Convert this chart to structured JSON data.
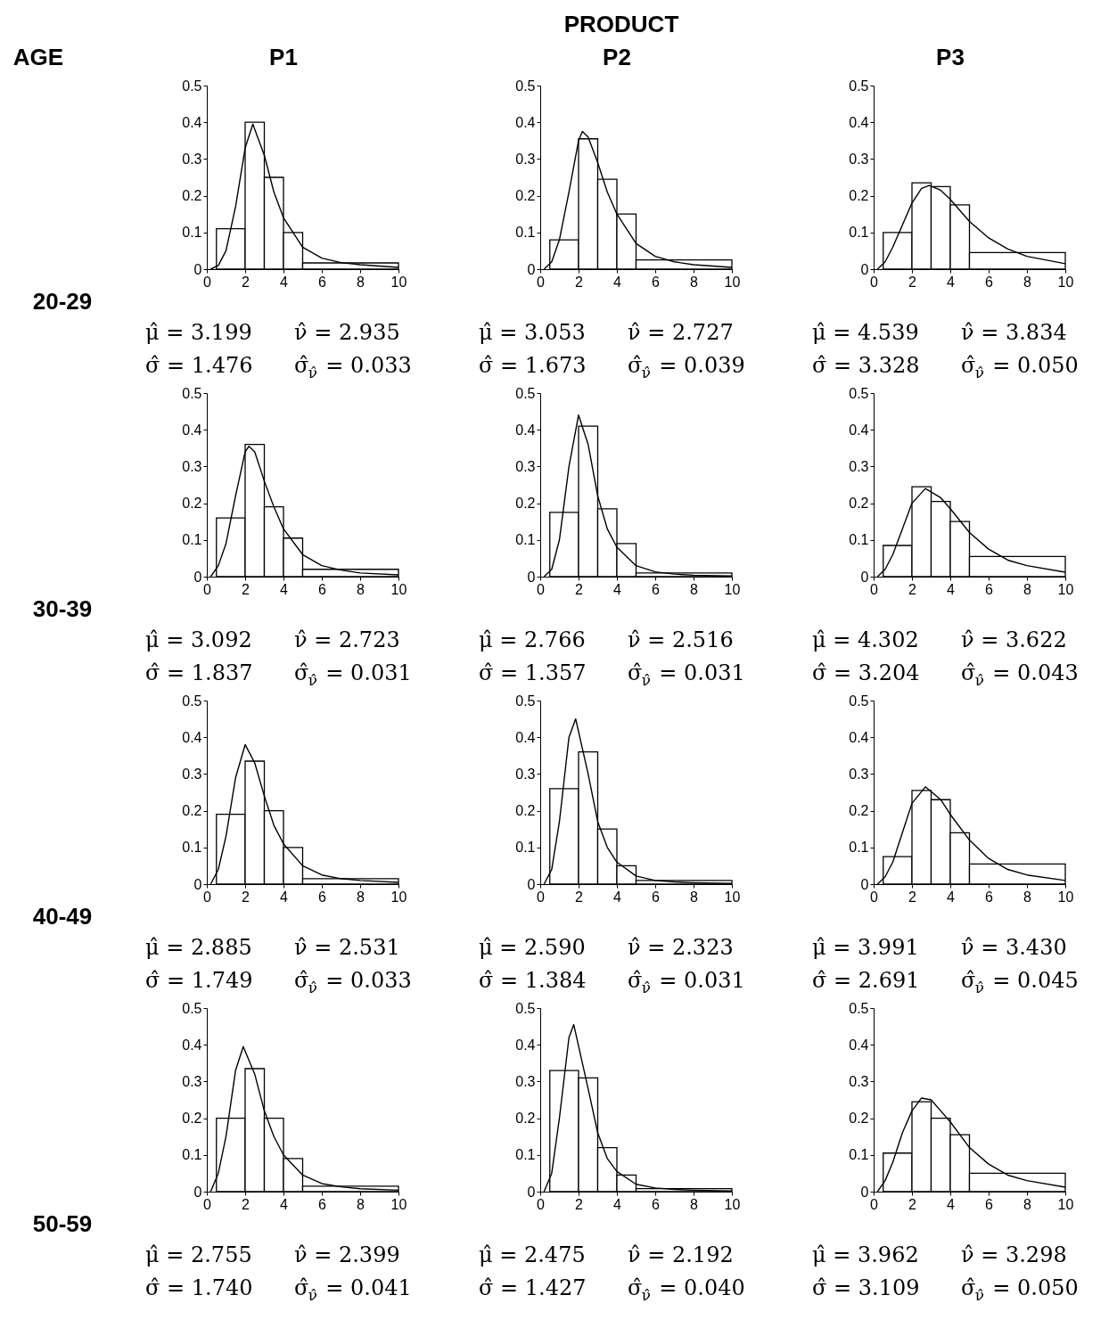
{
  "chart_data": [
    {
      "type": "other",
      "title": "PRODUCT",
      "annotations": [
        "AGE",
        "P1",
        "P2",
        "P3"
      ]
    },
    {
      "type": "other",
      "annotations": [
        "20-29",
        "30-39",
        "40-49",
        "50-59"
      ]
    },
    {
      "type": "histogram",
      "bins": [
        0.5,
        2,
        3,
        4,
        5,
        10
      ],
      "values": [
        0.11,
        0.4,
        0.25,
        0.1,
        0.017
      ],
      "xlim": [
        0,
        10
      ],
      "xticks": [
        0,
        2,
        4,
        6,
        8,
        10
      ],
      "ylim": [
        0,
        0.5
      ],
      "yticks": [
        0,
        0.1,
        0.2,
        0.3,
        0.4,
        0.5
      ],
      "series": [
        {
          "type": "line",
          "color": "#000000",
          "x": [
            0.2,
            0.6,
            1,
            1.5,
            2,
            2.4,
            3,
            3.5,
            4,
            5,
            6,
            7,
            8,
            10
          ],
          "values": [
            0,
            0.01,
            0.05,
            0.17,
            0.33,
            0.395,
            0.31,
            0.21,
            0.14,
            0.06,
            0.03,
            0.018,
            0.012,
            0.005
          ]
        }
      ],
      "annotations": [
        "μ̂ = 3.199",
        "ν̂ = 2.935",
        "σ̂ = 1.476",
        "σ̂$_{ν̂}$ = 0.033"
      ]
    },
    {
      "type": "histogram",
      "bins": [
        0.5,
        2,
        3,
        4,
        5,
        10
      ],
      "values": [
        0.08,
        0.355,
        0.245,
        0.15,
        0.025
      ],
      "xlim": [
        0,
        10
      ],
      "xticks": [
        0,
        2,
        4,
        6,
        8,
        10
      ],
      "ylim": [
        0,
        0.5
      ],
      "yticks": [
        0,
        0.1,
        0.2,
        0.3,
        0.4,
        0.5
      ],
      "series": [
        {
          "type": "line",
          "color": "#000000",
          "x": [
            0.2,
            0.6,
            1,
            1.5,
            2,
            2.2,
            2.5,
            3,
            3.5,
            4,
            5,
            6,
            7,
            8,
            10
          ],
          "values": [
            0,
            0.02,
            0.08,
            0.21,
            0.35,
            0.375,
            0.36,
            0.29,
            0.21,
            0.15,
            0.07,
            0.035,
            0.02,
            0.012,
            0.005
          ]
        }
      ],
      "annotations": [
        "μ̂ = 3.053",
        "ν̂ = 2.727",
        "σ̂ = 1.673",
        "σ̂$_{ν̂}$ = 0.039"
      ]
    },
    {
      "type": "histogram",
      "bins": [
        0.5,
        2,
        3,
        4,
        5,
        10
      ],
      "values": [
        0.1,
        0.235,
        0.225,
        0.175,
        0.045
      ],
      "xlim": [
        0,
        10
      ],
      "xticks": [
        0,
        2,
        4,
        6,
        8,
        10
      ],
      "ylim": [
        0,
        0.5
      ],
      "yticks": [
        0,
        0.1,
        0.2,
        0.3,
        0.4,
        0.5
      ],
      "series": [
        {
          "type": "line",
          "color": "#000000",
          "x": [
            0.2,
            0.6,
            1,
            1.5,
            2,
            2.5,
            2.9,
            3.5,
            4,
            5,
            6,
            7,
            8,
            10
          ],
          "values": [
            0,
            0.02,
            0.06,
            0.12,
            0.18,
            0.22,
            0.228,
            0.215,
            0.19,
            0.13,
            0.085,
            0.055,
            0.035,
            0.015
          ]
        }
      ],
      "annotations": [
        "μ̂ = 4.539",
        "ν̂ = 3.834",
        "σ̂ = 3.328",
        "σ̂$_{ν̂}$ = 0.050"
      ]
    },
    {
      "type": "histogram",
      "bins": [
        0.5,
        2,
        3,
        4,
        5,
        10
      ],
      "values": [
        0.16,
        0.36,
        0.19,
        0.105,
        0.02
      ],
      "xlim": [
        0,
        10
      ],
      "xticks": [
        0,
        2,
        4,
        6,
        8,
        10
      ],
      "ylim": [
        0,
        0.5
      ],
      "yticks": [
        0,
        0.1,
        0.2,
        0.3,
        0.4,
        0.5
      ],
      "series": [
        {
          "type": "line",
          "color": "#000000",
          "x": [
            0.2,
            0.6,
            1,
            1.5,
            2,
            2.2,
            2.5,
            3,
            3.5,
            4,
            5,
            6,
            7,
            8,
            10
          ],
          "values": [
            0,
            0.03,
            0.09,
            0.22,
            0.34,
            0.355,
            0.34,
            0.26,
            0.19,
            0.13,
            0.06,
            0.03,
            0.018,
            0.01,
            0.005
          ]
        }
      ],
      "annotations": [
        "μ̂ = 3.092",
        "ν̂ = 2.723",
        "σ̂ = 1.837",
        "σ̂$_{ν̂}$ = 0.031"
      ]
    },
    {
      "type": "histogram",
      "bins": [
        0.5,
        2,
        3,
        4,
        5,
        10
      ],
      "values": [
        0.175,
        0.41,
        0.185,
        0.09,
        0.01
      ],
      "xlim": [
        0,
        10
      ],
      "xticks": [
        0,
        2,
        4,
        6,
        8,
        10
      ],
      "ylim": [
        0,
        0.5
      ],
      "yticks": [
        0,
        0.1,
        0.2,
        0.3,
        0.4,
        0.5
      ],
      "series": [
        {
          "type": "line",
          "color": "#000000",
          "x": [
            0.2,
            0.6,
            1,
            1.5,
            2,
            2.5,
            3,
            3.5,
            4,
            5,
            6,
            7,
            8,
            10
          ],
          "values": [
            0,
            0.02,
            0.1,
            0.3,
            0.44,
            0.36,
            0.22,
            0.13,
            0.08,
            0.03,
            0.013,
            0.007,
            0.004,
            0.002
          ]
        }
      ],
      "annotations": [
        "μ̂ = 2.766",
        "ν̂ = 2.516",
        "σ̂ = 1.357",
        "σ̂$_{ν̂}$ = 0.031"
      ]
    },
    {
      "type": "histogram",
      "bins": [
        0.5,
        2,
        3,
        4,
        5,
        10
      ],
      "values": [
        0.085,
        0.245,
        0.205,
        0.15,
        0.055
      ],
      "xlim": [
        0,
        10
      ],
      "xticks": [
        0,
        2,
        4,
        6,
        8,
        10
      ],
      "ylim": [
        0,
        0.5
      ],
      "yticks": [
        0,
        0.1,
        0.2,
        0.3,
        0.4,
        0.5
      ],
      "series": [
        {
          "type": "line",
          "color": "#000000",
          "x": [
            0.2,
            0.6,
            1,
            1.5,
            2,
            2.7,
            3.5,
            4,
            5,
            6,
            7,
            8,
            10
          ],
          "values": [
            0,
            0.02,
            0.06,
            0.13,
            0.2,
            0.24,
            0.215,
            0.185,
            0.12,
            0.075,
            0.045,
            0.03,
            0.012
          ]
        }
      ],
      "annotations": [
        "μ̂ = 4.302",
        "ν̂ = 3.622",
        "σ̂ = 3.204",
        "σ̂$_{ν̂}$ = 0.043"
      ]
    },
    {
      "type": "histogram",
      "bins": [
        0.5,
        2,
        3,
        4,
        5,
        10
      ],
      "values": [
        0.19,
        0.335,
        0.2,
        0.1,
        0.015
      ],
      "xlim": [
        0,
        10
      ],
      "xticks": [
        0,
        2,
        4,
        6,
        8,
        10
      ],
      "ylim": [
        0,
        0.5
      ],
      "yticks": [
        0,
        0.1,
        0.2,
        0.3,
        0.4,
        0.5
      ],
      "series": [
        {
          "type": "line",
          "color": "#000000",
          "x": [
            0.2,
            0.6,
            1,
            1.5,
            2,
            2.5,
            3,
            3.5,
            4,
            5,
            6,
            7,
            8,
            10
          ],
          "values": [
            0,
            0.04,
            0.13,
            0.29,
            0.38,
            0.33,
            0.24,
            0.16,
            0.11,
            0.05,
            0.025,
            0.015,
            0.01,
            0.005
          ]
        }
      ],
      "annotations": [
        "μ̂ = 2.885",
        "ν̂ = 2.531",
        "σ̂ = 1.749",
        "σ̂$_{ν̂}$ = 0.033"
      ]
    },
    {
      "type": "histogram",
      "bins": [
        0.5,
        2,
        3,
        4,
        5,
        10
      ],
      "values": [
        0.26,
        0.36,
        0.15,
        0.05,
        0.01
      ],
      "xlim": [
        0,
        10
      ],
      "xticks": [
        0,
        2,
        4,
        6,
        8,
        10
      ],
      "ylim": [
        0,
        0.5
      ],
      "yticks": [
        0,
        0.1,
        0.2,
        0.3,
        0.4,
        0.5
      ],
      "series": [
        {
          "type": "line",
          "color": "#000000",
          "x": [
            0.2,
            0.6,
            1,
            1.5,
            1.85,
            2.5,
            3,
            3.5,
            4,
            5,
            6,
            7,
            8,
            10
          ],
          "values": [
            0,
            0.04,
            0.17,
            0.4,
            0.45,
            0.3,
            0.17,
            0.1,
            0.06,
            0.022,
            0.01,
            0.006,
            0.004,
            0.002
          ]
        }
      ],
      "annotations": [
        "μ̂ = 2.590",
        "ν̂ = 2.323",
        "σ̂ = 1.384",
        "σ̂$_{ν̂}$ = 0.031"
      ]
    },
    {
      "type": "histogram",
      "bins": [
        0.5,
        2,
        3,
        4,
        5,
        10
      ],
      "values": [
        0.075,
        0.255,
        0.23,
        0.14,
        0.055
      ],
      "xlim": [
        0,
        10
      ],
      "xticks": [
        0,
        2,
        4,
        6,
        8,
        10
      ],
      "ylim": [
        0,
        0.5
      ],
      "yticks": [
        0,
        0.1,
        0.2,
        0.3,
        0.4,
        0.5
      ],
      "series": [
        {
          "type": "line",
          "color": "#000000",
          "x": [
            0.2,
            0.6,
            1,
            1.5,
            2,
            2.7,
            3.5,
            4,
            5,
            6,
            7,
            8,
            10
          ],
          "values": [
            0,
            0.02,
            0.06,
            0.14,
            0.22,
            0.265,
            0.23,
            0.19,
            0.12,
            0.07,
            0.04,
            0.025,
            0.01
          ]
        }
      ],
      "annotations": [
        "μ̂ = 3.991",
        "ν̂ = 3.430",
        "σ̂ = 2.691",
        "σ̂$_{ν̂}$ = 0.045"
      ]
    },
    {
      "type": "histogram",
      "bins": [
        0.5,
        2,
        3,
        4,
        5,
        10
      ],
      "values": [
        0.2,
        0.335,
        0.2,
        0.09,
        0.015
      ],
      "xlim": [
        0,
        10
      ],
      "xticks": [
        0,
        2,
        4,
        6,
        8,
        10
      ],
      "ylim": [
        0,
        0.5
      ],
      "yticks": [
        0,
        0.1,
        0.2,
        0.3,
        0.4,
        0.5
      ],
      "series": [
        {
          "type": "line",
          "color": "#000000",
          "x": [
            0.2,
            0.6,
            1,
            1.5,
            1.9,
            2.5,
            3,
            3.5,
            4,
            5,
            6,
            7,
            8,
            10
          ],
          "values": [
            0,
            0.05,
            0.15,
            0.33,
            0.395,
            0.32,
            0.22,
            0.15,
            0.1,
            0.045,
            0.022,
            0.013,
            0.008,
            0.004
          ]
        }
      ],
      "annotations": [
        "μ̂ = 2.755",
        "ν̂ = 2.399",
        "σ̂ = 1.740",
        "σ̂$_{ν̂}$ = 0.041"
      ]
    },
    {
      "type": "histogram",
      "bins": [
        0.5,
        2,
        3,
        4,
        5,
        10
      ],
      "values": [
        0.33,
        0.31,
        0.12,
        0.045,
        0.008
      ],
      "xlim": [
        0,
        10
      ],
      "xticks": [
        0,
        2,
        4,
        6,
        8,
        10
      ],
      "ylim": [
        0,
        0.5
      ],
      "yticks": [
        0,
        0.1,
        0.2,
        0.3,
        0.4,
        0.5
      ],
      "series": [
        {
          "type": "line",
          "color": "#000000",
          "x": [
            0.2,
            0.6,
            1,
            1.5,
            1.75,
            2.5,
            3,
            3.5,
            4,
            5,
            6,
            7,
            8,
            10
          ],
          "values": [
            0,
            0.05,
            0.2,
            0.42,
            0.455,
            0.28,
            0.16,
            0.09,
            0.055,
            0.02,
            0.01,
            0.006,
            0.004,
            0.002
          ]
        }
      ],
      "annotations": [
        "μ̂ = 2.475",
        "ν̂ = 2.192",
        "σ̂ = 1.427",
        "σ̂$_{ν̂}$ = 0.040"
      ]
    },
    {
      "type": "histogram",
      "bins": [
        0.5,
        2,
        3,
        4,
        5,
        10
      ],
      "values": [
        0.105,
        0.245,
        0.2,
        0.155,
        0.05
      ],
      "xlim": [
        0,
        10
      ],
      "xticks": [
        0,
        2,
        4,
        6,
        8,
        10
      ],
      "ylim": [
        0,
        0.5
      ],
      "yticks": [
        0,
        0.1,
        0.2,
        0.3,
        0.4,
        0.5
      ],
      "series": [
        {
          "type": "line",
          "color": "#000000",
          "x": [
            0.2,
            0.6,
            1,
            1.5,
            2,
            2.5,
            3,
            3.5,
            4,
            5,
            6,
            7,
            8,
            10
          ],
          "values": [
            0,
            0.03,
            0.08,
            0.16,
            0.22,
            0.255,
            0.25,
            0.22,
            0.19,
            0.12,
            0.075,
            0.045,
            0.03,
            0.012
          ]
        }
      ],
      "annotations": [
        "μ̂ = 3.962",
        "ν̂ = 3.298",
        "σ̂ = 3.109",
        "σ̂$_{ν̂}$ = 0.050"
      ]
    }
  ]
}
